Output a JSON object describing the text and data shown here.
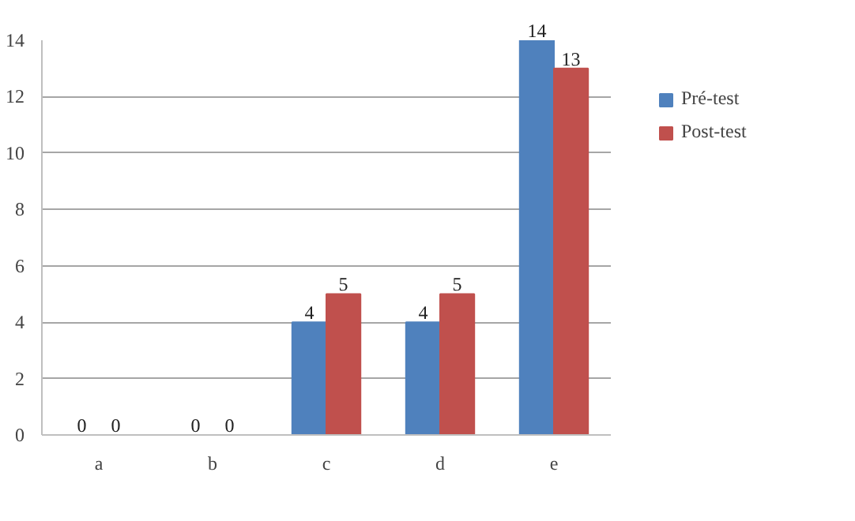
{
  "chart_data": {
    "type": "bar",
    "categories": [
      "a",
      "b",
      "c",
      "d",
      "e"
    ],
    "series": [
      {
        "name": "Pré-test",
        "color": "#4f81bd",
        "values": [
          0,
          0,
          4,
          4,
          14
        ]
      },
      {
        "name": "Post-test",
        "color": "#c0504d",
        "values": [
          0,
          0,
          5,
          5,
          13
        ]
      }
    ],
    "ylim": [
      0,
      14
    ],
    "yticks": [
      0,
      2,
      4,
      6,
      8,
      10,
      12,
      14
    ],
    "grid": "y",
    "legend": "right",
    "data_labels": true
  }
}
